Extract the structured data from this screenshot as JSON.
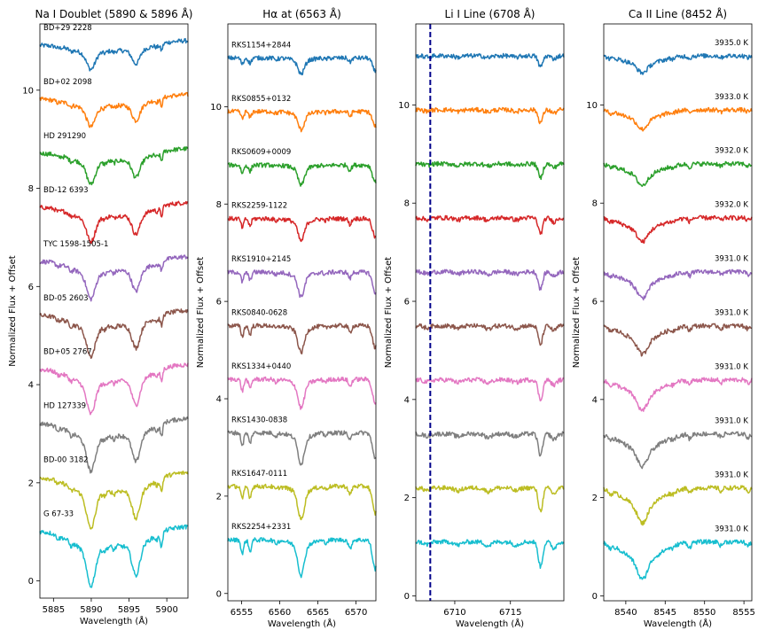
{
  "chart_data": [
    {
      "type": "line",
      "title": "Na I Doublet (5890 & 5896 Å)",
      "xlabel": "Wavelength (Å)",
      "ylabel": "Normalized Flux + Offset",
      "xlim": [
        5883.2,
        5902.8
      ],
      "ylim": [
        -0.35,
        11.35
      ],
      "xticks": [
        5885,
        5890,
        5895,
        5900
      ],
      "yticks": [
        0,
        2,
        4,
        6,
        8,
        10
      ],
      "label_position": "left",
      "series": [
        {
          "name": "BD+29 2228",
          "offset": 11.0
        },
        {
          "name": "BD+02 2098",
          "offset": 9.9
        },
        {
          "name": "HD 291290",
          "offset": 8.8
        },
        {
          "name": "BD-12 6393",
          "offset": 7.7
        },
        {
          "name": "TYC 1598-1505-1",
          "offset": 6.6
        },
        {
          "name": "BD-05 2603",
          "offset": 5.5
        },
        {
          "name": "BD+05 2767",
          "offset": 4.4
        },
        {
          "name": "HD 127339",
          "offset": 3.3
        },
        {
          "name": "BD-00 3182",
          "offset": 2.2
        },
        {
          "name": "G 67-33",
          "offset": 1.1
        }
      ]
    },
    {
      "type": "line",
      "title": "Hα at (6563 Å)",
      "xlabel": "Wavelength (Å)",
      "ylabel": "Normalized Flux + Offset",
      "xlim": [
        6553.2,
        6572.6
      ],
      "ylim": [
        -0.15,
        11.7
      ],
      "xticks": [
        6555,
        6560,
        6565,
        6570
      ],
      "yticks": [
        0,
        2,
        4,
        6,
        8,
        10
      ],
      "label_position": "left",
      "series": [
        {
          "name": "RKS1154+2844",
          "offset": 11.0
        },
        {
          "name": "RKS0855+0132",
          "offset": 9.9
        },
        {
          "name": "RKS0609+0009",
          "offset": 8.8
        },
        {
          "name": "RKS2259-1122",
          "offset": 7.7
        },
        {
          "name": "RKS1910+2145",
          "offset": 6.6
        },
        {
          "name": "RKS0840-0628",
          "offset": 5.5
        },
        {
          "name": "RKS1334+0440",
          "offset": 4.4
        },
        {
          "name": "RKS1430-0838",
          "offset": 3.3
        },
        {
          "name": "RKS1647-0111",
          "offset": 2.2
        },
        {
          "name": "RKS2254+2331",
          "offset": 1.1
        }
      ]
    },
    {
      "type": "line",
      "title": "Li I Line (6708 Å)",
      "xlabel": "Wavelength (Å)",
      "ylabel": "Normalized Flux + Offset",
      "xlim": [
        6706.5,
        6719.8
      ],
      "ylim": [
        -0.1,
        11.65
      ],
      "xticks": [
        6710,
        6715
      ],
      "yticks": [
        0,
        2,
        4,
        6,
        8,
        10
      ],
      "reference_line_x": 6707.8,
      "series": [
        {
          "offset": 11.0
        },
        {
          "offset": 9.9
        },
        {
          "offset": 8.8
        },
        {
          "offset": 7.7
        },
        {
          "offset": 6.6
        },
        {
          "offset": 5.5
        },
        {
          "offset": 4.4
        },
        {
          "offset": 3.3
        },
        {
          "offset": 2.2
        },
        {
          "offset": 1.1
        }
      ]
    },
    {
      "type": "line",
      "title": "Ca II Line (8452 Å)",
      "xlabel": "Wavelength (Å)",
      "ylabel": "Normalized Flux + Offset",
      "xlim": [
        8537.2,
        8556.0
      ],
      "ylim": [
        -0.1,
        11.65
      ],
      "xticks": [
        8540,
        8545,
        8550,
        8555
      ],
      "yticks": [
        0,
        2,
        4,
        6,
        8,
        10
      ],
      "label_position": "right",
      "series": [
        {
          "name": "3935.0 K",
          "offset": 11.0
        },
        {
          "name": "3933.0 K",
          "offset": 9.9
        },
        {
          "name": "3932.0 K",
          "offset": 8.8
        },
        {
          "name": "3932.0 K",
          "offset": 7.7
        },
        {
          "name": "3931.0 K",
          "offset": 6.6
        },
        {
          "name": "3931.0 K",
          "offset": 5.5
        },
        {
          "name": "3931.0 K",
          "offset": 4.4
        },
        {
          "name": "3931.0 K",
          "offset": 3.3
        },
        {
          "name": "3931.0 K",
          "offset": 2.2
        },
        {
          "name": "3931.0 K",
          "offset": 1.1
        }
      ]
    }
  ],
  "colors": [
    "#1f77b4",
    "#ff7f0e",
    "#2ca02c",
    "#d62728",
    "#9467bd",
    "#8c564b",
    "#e377c2",
    "#7f7f7f",
    "#bcbd22",
    "#17becf"
  ],
  "reference_line_color": "#00008b"
}
